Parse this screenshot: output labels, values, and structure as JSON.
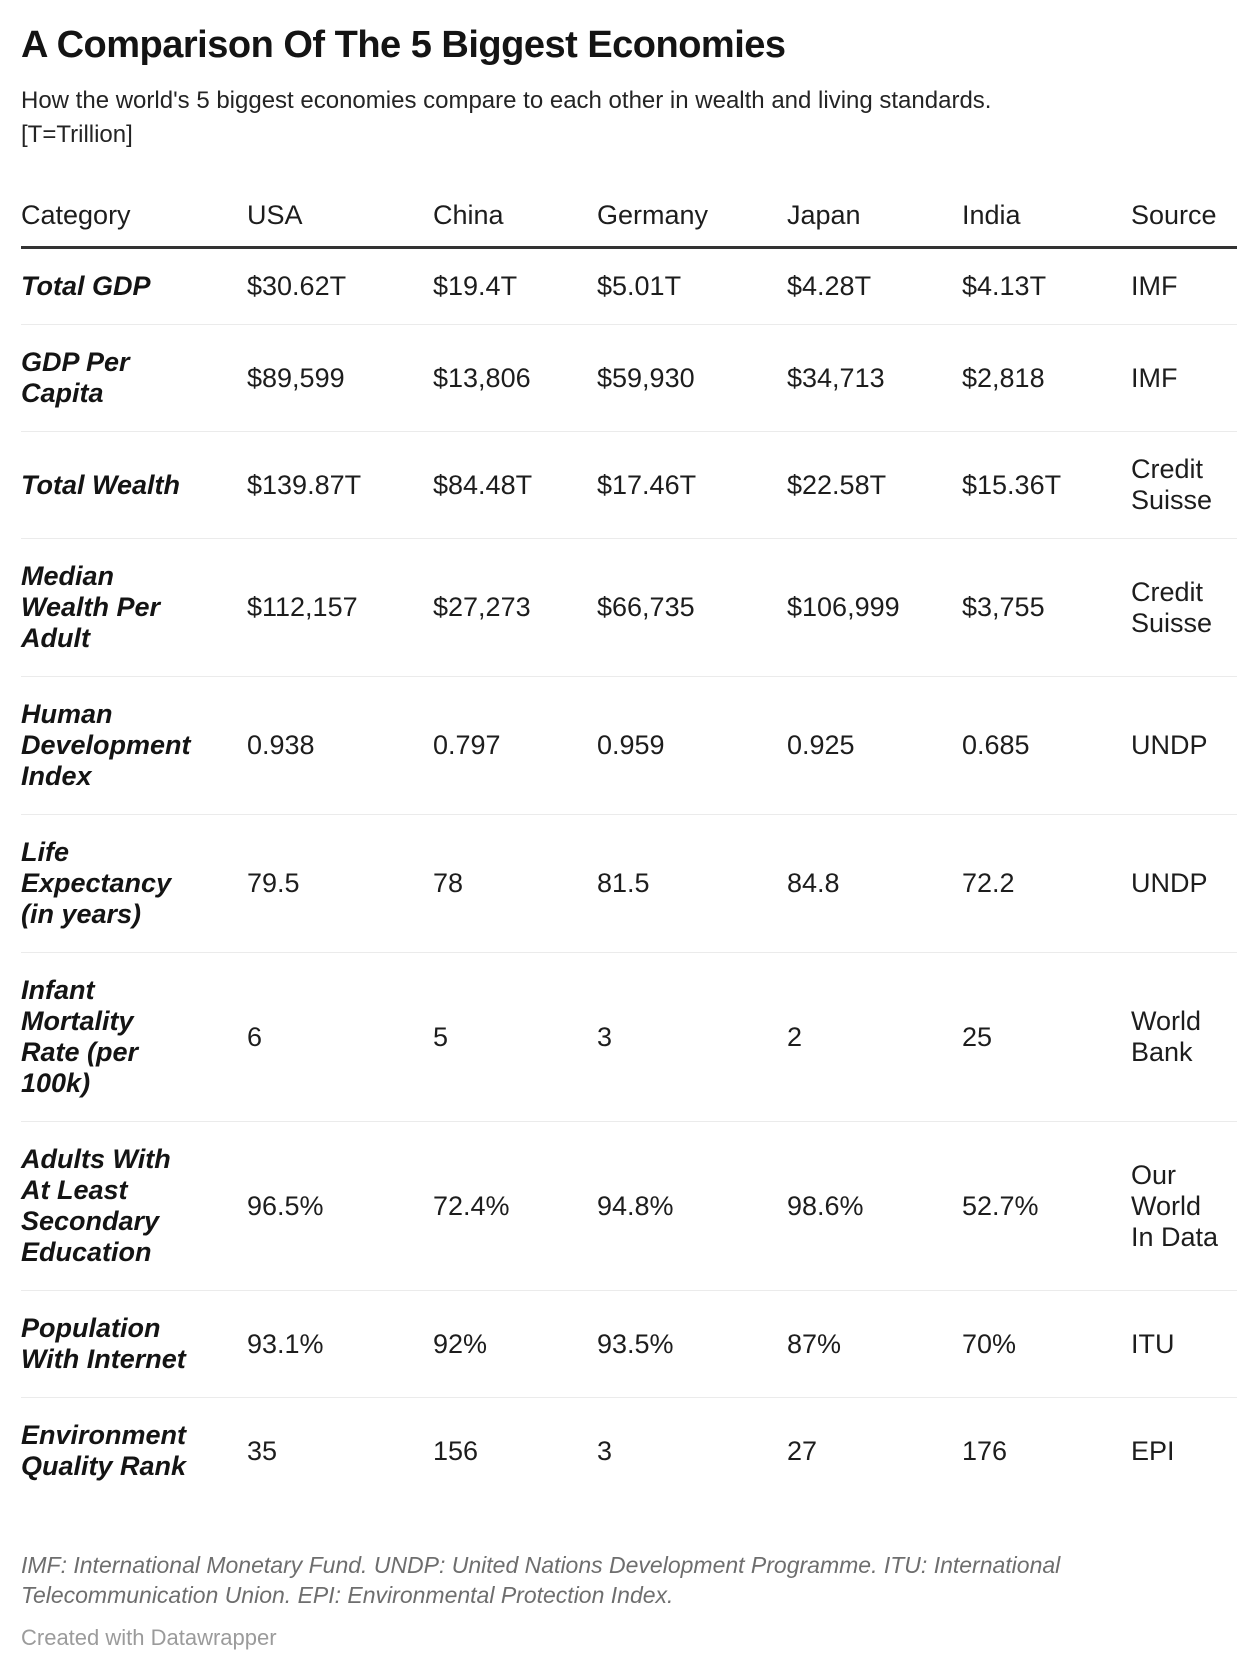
{
  "title": "A Comparison Of The 5 Biggest Economies",
  "subtitle": "How the world's 5 biggest economies compare to each other in wealth and living standards.\n[T=Trillion]",
  "chart_data": {
    "type": "table",
    "columns": [
      "Category",
      "USA",
      "China",
      "Germany",
      "Japan",
      "India",
      "Source"
    ],
    "rows": [
      {
        "category": "Total GDP",
        "usa": "$30.62T",
        "china": "$19.4T",
        "germany": "$5.01T",
        "japan": "$4.28T",
        "india": "$4.13T",
        "source": "IMF"
      },
      {
        "category": "GDP Per\nCapita",
        "usa": "$89,599",
        "china": "$13,806",
        "germany": "$59,930",
        "japan": "$34,713",
        "india": "$2,818",
        "source": "IMF"
      },
      {
        "category": "Total Wealth",
        "usa": "$139.87T",
        "china": "$84.48T",
        "germany": "$17.46T",
        "japan": "$22.58T",
        "india": "$15.36T",
        "source": "Credit\nSuisse"
      },
      {
        "category": "Median\nWealth Per\nAdult",
        "usa": "$112,157",
        "china": "$27,273",
        "germany": "$66,735",
        "japan": "$106,999",
        "india": "$3,755",
        "source": "Credit\nSuisse"
      },
      {
        "category": "Human\nDevelopment\nIndex",
        "usa": "0.938",
        "china": "0.797",
        "germany": "0.959",
        "japan": "0.925",
        "india": "0.685",
        "source": "UNDP"
      },
      {
        "category": "Life\nExpectancy\n(in years)",
        "usa": "79.5",
        "china": "78",
        "germany": "81.5",
        "japan": "84.8",
        "india": "72.2",
        "source": "UNDP"
      },
      {
        "category": "Infant\nMortality\nRate (per\n100k)",
        "usa": "6",
        "china": "5",
        "germany": "3",
        "japan": "2",
        "india": "25",
        "source": "World\nBank"
      },
      {
        "category": "Adults With\nAt Least\nSecondary\nEducation",
        "usa": "96.5%",
        "china": "72.4%",
        "germany": "94.8%",
        "japan": "98.6%",
        "india": "52.7%",
        "source": "Our\nWorld\nIn Data"
      },
      {
        "category": "Population\nWith Internet",
        "usa": "93.1%",
        "china": "92%",
        "germany": "93.5%",
        "japan": "87%",
        "india": "70%",
        "source": "ITU"
      },
      {
        "category": "Environment\nQuality Rank",
        "usa": "35",
        "china": "156",
        "germany": "3",
        "japan": "27",
        "india": "176",
        "source": "EPI"
      }
    ]
  },
  "footer": {
    "notes": "IMF: International Monetary Fund. UNDP: United Nations Development Programme. ITU: International\nTelecommunication Union. EPI: Environmental Protection Index.",
    "credit": "Created with Datawrapper"
  },
  "colors": {
    "text_primary": "#1d1d1d",
    "header_border": "#333333",
    "row_divider": "#ebebeb",
    "notes_text": "#6e6e6e",
    "credit_text": "#9b9b9b",
    "background": "#ffffff"
  }
}
